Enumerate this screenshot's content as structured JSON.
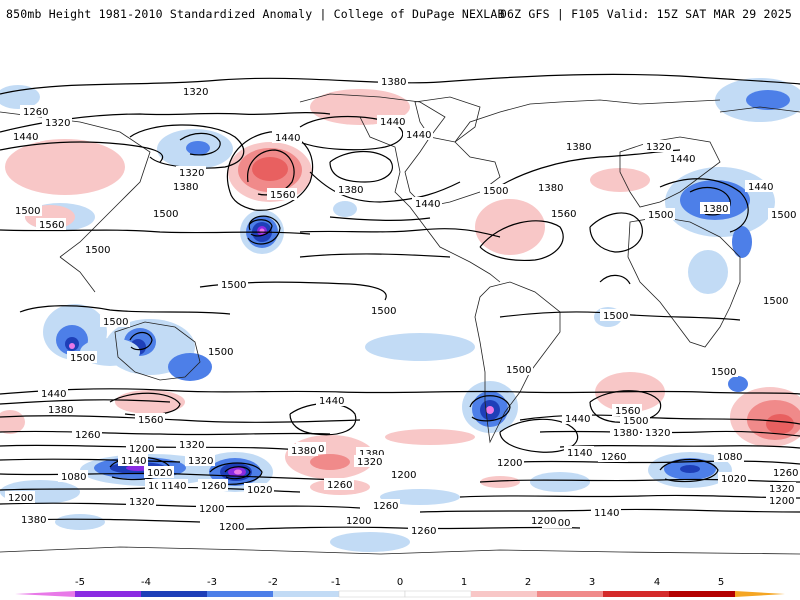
{
  "header": {
    "title": "850mb Height 1981-2010 Standardized Anomaly | College of DuPage NEXLAB",
    "run_info": "06Z GFS | F105 Valid: 15Z SAT MAR 29 2025"
  },
  "colors": {
    "neg5": "#e879e8",
    "neg4": "#8a2be2",
    "neg3": "#1e3fb8",
    "neg2": "#4d7fe8",
    "neg1": "#c2dbf5",
    "pos1": "#f8c7c7",
    "pos2": "#f08a8a",
    "pos3": "#d42a2a",
    "pos4": "#b30000",
    "pos5": "#f5a623"
  },
  "colorbar": {
    "ticks": [
      "-5",
      "-4",
      "-3",
      "-2",
      "-1",
      "0",
      "1",
      "2",
      "3",
      "4",
      "5"
    ]
  },
  "contour_labels": [
    {
      "id": "l1",
      "text": "1320"
    },
    {
      "id": "l2",
      "text": "1380"
    },
    {
      "id": "l3",
      "text": "1260"
    },
    {
      "id": "l4",
      "text": "1320"
    },
    {
      "id": "l5",
      "text": "1440"
    },
    {
      "id": "l6",
      "text": "1440"
    },
    {
      "id": "l7",
      "text": "1440"
    },
    {
      "id": "l8",
      "text": "1440"
    },
    {
      "id": "l9",
      "text": "1380"
    },
    {
      "id": "l10",
      "text": "1320"
    },
    {
      "id": "l11",
      "text": "1440"
    },
    {
      "id": "l12",
      "text": "1320"
    },
    {
      "id": "l13",
      "text": "1380"
    },
    {
      "id": "l14",
      "text": "1560"
    },
    {
      "id": "l15",
      "text": "1380"
    },
    {
      "id": "l16",
      "text": "1380"
    },
    {
      "id": "l17",
      "text": "1440"
    },
    {
      "id": "l18",
      "text": "1500"
    },
    {
      "id": "l19",
      "text": "1500"
    },
    {
      "id": "l20",
      "text": "1560"
    },
    {
      "id": "l21",
      "text": "1380"
    },
    {
      "id": "l22",
      "text": "1440"
    },
    {
      "id": "l23",
      "text": "1500"
    },
    {
      "id": "l24",
      "text": "1560"
    },
    {
      "id": "l25",
      "text": "1500"
    },
    {
      "id": "l26",
      "text": "1500"
    },
    {
      "id": "l27",
      "text": "1500"
    },
    {
      "id": "l28",
      "text": "1500"
    },
    {
      "id": "l29",
      "text": "1500"
    },
    {
      "id": "l30",
      "text": "1500"
    },
    {
      "id": "l31",
      "text": "1500"
    },
    {
      "id": "l32",
      "text": "1500"
    },
    {
      "id": "l33",
      "text": "1500"
    },
    {
      "id": "l34",
      "text": "1500"
    },
    {
      "id": "l35",
      "text": "1500"
    },
    {
      "id": "l36",
      "text": "1500"
    },
    {
      "id": "l37",
      "text": "1440"
    },
    {
      "id": "l38",
      "text": "1380"
    },
    {
      "id": "l39",
      "text": "1560"
    },
    {
      "id": "l40",
      "text": "1440"
    },
    {
      "id": "l41",
      "text": "1380"
    },
    {
      "id": "l42",
      "text": "1320"
    },
    {
      "id": "l43",
      "text": "1260"
    },
    {
      "id": "l44",
      "text": "1200"
    },
    {
      "id": "l45",
      "text": "1320"
    },
    {
      "id": "l46",
      "text": "1140"
    },
    {
      "id": "l47",
      "text": "1080"
    },
    {
      "id": "l48",
      "text": "1020"
    },
    {
      "id": "l49",
      "text": "1080"
    },
    {
      "id": "l50",
      "text": "1260"
    },
    {
      "id": "l51",
      "text": "1140"
    },
    {
      "id": "l52",
      "text": "1020"
    },
    {
      "id": "l53",
      "text": "1200"
    },
    {
      "id": "l54",
      "text": "1320"
    },
    {
      "id": "l55",
      "text": "1200"
    },
    {
      "id": "l56",
      "text": "1380"
    },
    {
      "id": "l57",
      "text": "1200"
    },
    {
      "id": "l58",
      "text": "1260"
    },
    {
      "id": "l59",
      "text": "1380"
    },
    {
      "id": "l60",
      "text": "1320"
    },
    {
      "id": "l61",
      "text": "1200"
    },
    {
      "id": "l62",
      "text": "1260"
    },
    {
      "id": "l63",
      "text": "1140"
    },
    {
      "id": "l64",
      "text": "1200"
    },
    {
      "id": "l65",
      "text": "1260"
    },
    {
      "id": "l66",
      "text": "1200"
    },
    {
      "id": "l67",
      "text": "1140"
    },
    {
      "id": "l68",
      "text": "1200"
    },
    {
      "id": "l69",
      "text": "1260"
    },
    {
      "id": "l70",
      "text": "1080"
    },
    {
      "id": "l71",
      "text": "1020"
    },
    {
      "id": "l72",
      "text": "1320"
    },
    {
      "id": "l73",
      "text": "1200"
    },
    {
      "id": "l74",
      "text": "1260"
    },
    {
      "id": "l75",
      "text": "1560"
    },
    {
      "id": "l76",
      "text": "1500"
    },
    {
      "id": "l77",
      "text": "1380"
    },
    {
      "id": "l78",
      "text": "1440"
    },
    {
      "id": "l79",
      "text": "1320"
    },
    {
      "id": "l80",
      "text": "1380"
    },
    {
      "id": "l81",
      "text": "1200"
    }
  ]
}
